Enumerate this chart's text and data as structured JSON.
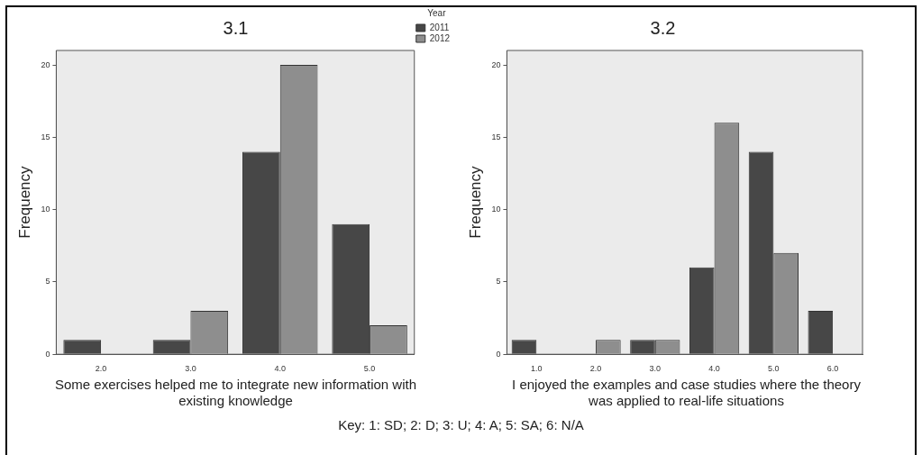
{
  "chart_data": [
    {
      "type": "bar",
      "title": "3.1",
      "xlabel": "Some exercises helped me to integrate new information with existing knowledge",
      "ylabel": "Frequency",
      "categories": [
        "2.0",
        "3.0",
        "4.0",
        "5.0"
      ],
      "series": [
        {
          "name": "2011",
          "color": "#474747",
          "values": [
            1,
            1,
            14,
            9
          ]
        },
        {
          "name": "2012",
          "color": "#8e8e8e",
          "values": [
            0,
            3,
            20,
            2
          ]
        }
      ],
      "ylim": [
        0,
        21
      ],
      "yticks": [
        0,
        5,
        10,
        15,
        20
      ],
      "legend": "top right",
      "legend_title": "Year",
      "annotations": [
        "Key: 1: SD; 2: D; 3: U; 4: A; 5: SA; 6: N/A"
      ]
    },
    {
      "type": "bar",
      "title": "3.2",
      "xlabel": "I enjoyed the examples and case studies where the theory was applied to real-life situations",
      "ylabel": "Frequency",
      "categories": [
        "1.0",
        "2.0",
        "3.0",
        "4.0",
        "5.0",
        "6.0"
      ],
      "series": [
        {
          "color": "#474747",
          "values": [
            1,
            0,
            1,
            6,
            14,
            3
          ]
        },
        {
          "color": "#8e8e8e",
          "values": [
            0,
            1,
            1,
            16,
            7,
            0
          ]
        }
      ],
      "ylim": [
        0,
        21
      ],
      "yticks": [
        0,
        5,
        10,
        15,
        20
      ]
    }
  ]
}
